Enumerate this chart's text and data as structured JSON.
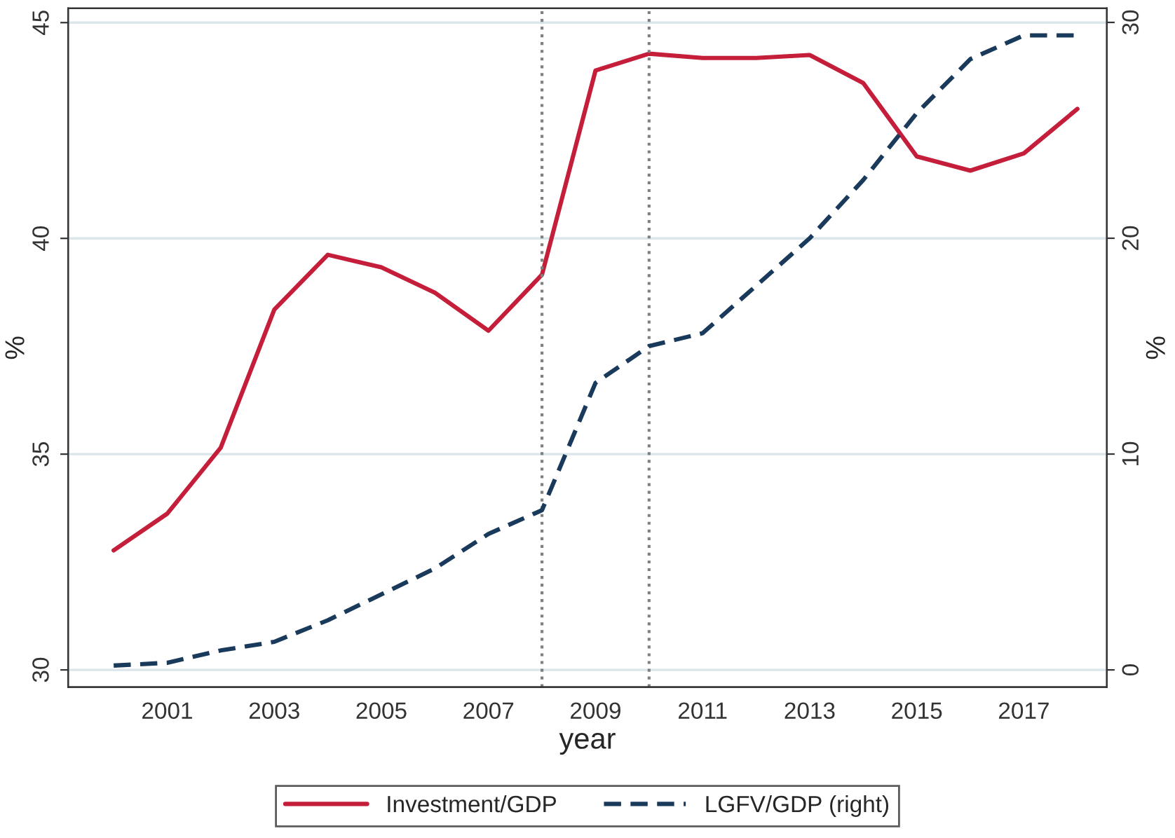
{
  "chart_data": {
    "type": "line",
    "xlabel": "year",
    "ylabel": "%",
    "y2label": "%",
    "x": [
      2000,
      2001,
      2002,
      2003,
      2004,
      2005,
      2006,
      2007,
      2008,
      2009,
      2010,
      2011,
      2012,
      2013,
      2014,
      2015,
      2016,
      2017,
      2018
    ],
    "series": [
      {
        "name": "Investment/GDP",
        "color": "#c41e3a",
        "line_style": "solid",
        "values": [
          32.77,
          33.62,
          35.15,
          38.35,
          39.62,
          39.33,
          38.74,
          37.86,
          39.16,
          43.89,
          44.28,
          44.18,
          44.18,
          44.25,
          43.6,
          41.9,
          41.57,
          41.97,
          43.0
        ]
      },
      {
        "name": "LGFV/GDP (right)",
        "color": "#1a3a5c",
        "line_style": "dashed",
        "axis": "y2",
        "values": [
          0.2,
          0.33,
          0.9,
          1.3,
          2.3,
          3.5,
          4.7,
          6.3,
          7.4,
          13.3,
          15.0,
          15.6,
          17.8,
          20.0,
          22.7,
          25.8,
          28.3,
          29.4,
          29.4
        ]
      }
    ],
    "xlim": [
      1999.15,
      2018.55
    ],
    "xticks": [
      2001,
      2003,
      2005,
      2007,
      2009,
      2011,
      2013,
      2015,
      2017
    ],
    "ylim": [
      29.6,
      45.33
    ],
    "yticks": [
      30,
      35,
      40,
      45
    ],
    "y2lim": [
      -0.8,
      30.65
    ],
    "y2ticks": [
      0,
      10,
      20,
      30
    ],
    "ref_lines": [
      {
        "axis": "x",
        "value": 2008,
        "color": "#808080",
        "line_style": "dotted"
      },
      {
        "axis": "x",
        "value": 2010,
        "color": "#808080",
        "line_style": "dotted"
      }
    ],
    "grid": "y",
    "legend": "bottom",
    "marker": "none"
  }
}
